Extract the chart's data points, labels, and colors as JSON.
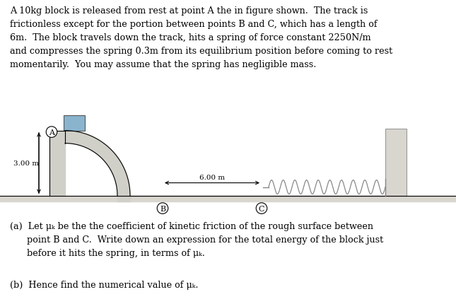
{
  "background_color": "#ffffff",
  "paragraph_text_lines": [
    "A 10kg block is released from rest at point A the in figure shown.  The track is",
    "frictionless except for the portion between points B and C, which has a length of",
    "6m.  The block travels down the track, hits a spring of force constant 2250N/m",
    "and compresses the spring 0.3m from its equilibrium position before coming to rest",
    "momentarily.  You may assume that the spring has negligible mass."
  ],
  "question_a_lines": [
    "(a)  Let μₖ be the the coefficient of kinetic friction of the rough surface between",
    "      point B and C.  Write down an expression for the total energy of the block just",
    "      before it hits the spring, in terms of μₖ."
  ],
  "question_b": "(b)  Hence find the numerical value of μₖ.",
  "fig_label_A": "A",
  "fig_label_B": "B",
  "fig_label_C": "C",
  "fig_height_label": "3.00 m",
  "fig_width_label": "6.00 m",
  "ramp_color": "#d0cfc8",
  "block_color": "#8ab4ce",
  "wall_color": "#d8d6cf",
  "floor_color": "#d8d6cf",
  "spring_color": "#888888",
  "arrow_color": "#000000",
  "ground_line_color": "#000000"
}
